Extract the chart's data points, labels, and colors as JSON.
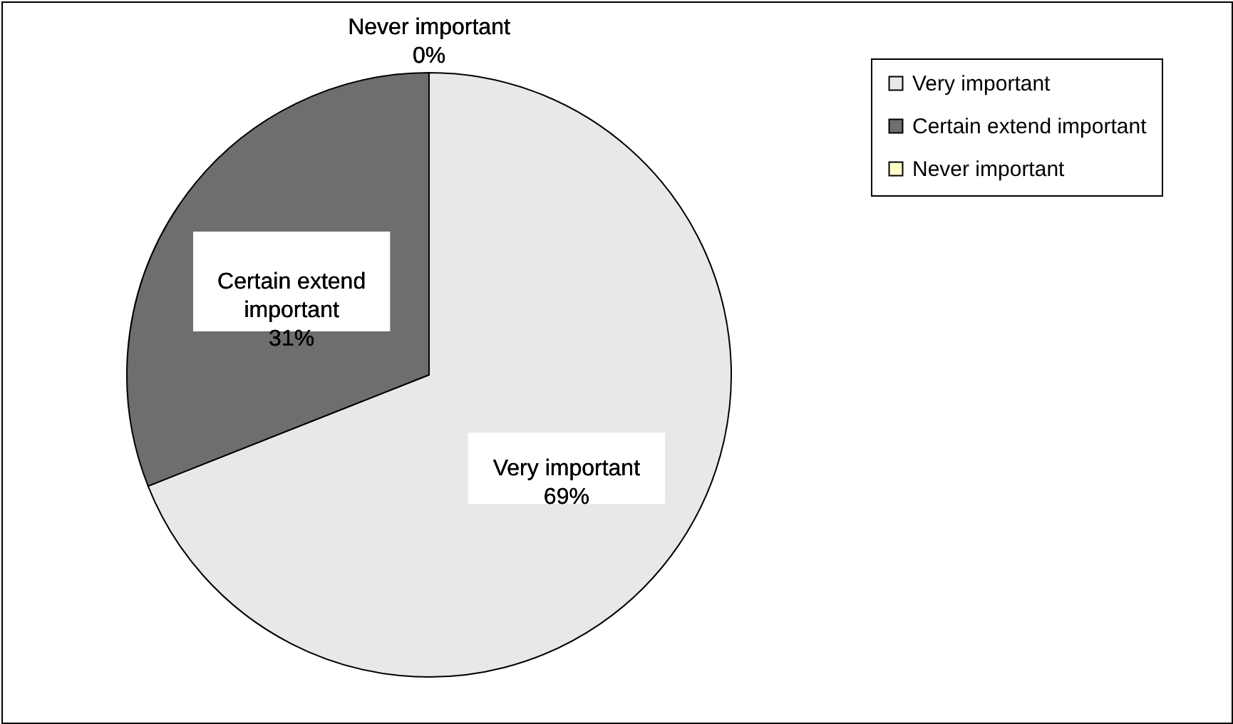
{
  "chart_data": {
    "type": "pie",
    "categories": [
      "Very important",
      "Certain extend important",
      "Never important"
    ],
    "values": [
      69,
      31,
      0
    ],
    "colors": [
      "#e8e8e8",
      "#6e6e6e",
      "#ffffcc"
    ],
    "value_labels": [
      "69%",
      "31%",
      "0%"
    ],
    "legend": "right"
  }
}
